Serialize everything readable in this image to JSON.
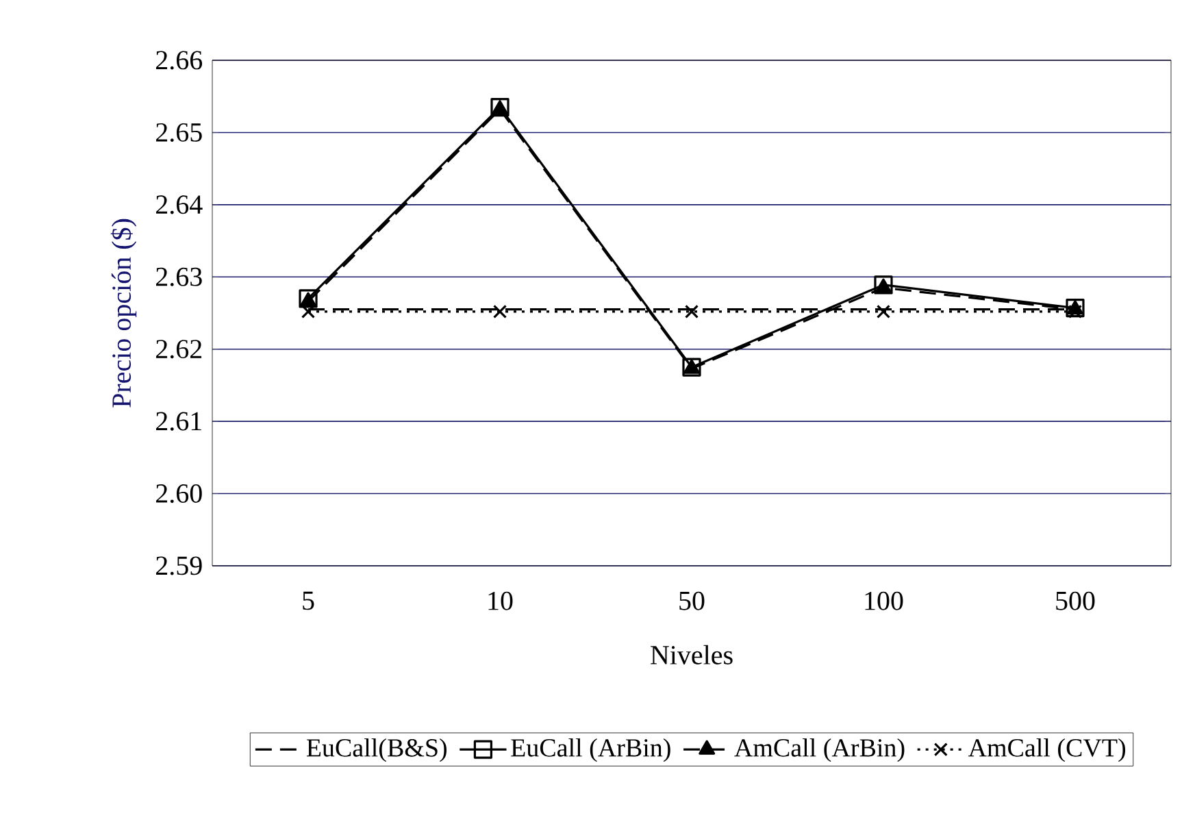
{
  "chart_data": {
    "type": "line",
    "xlabel": "Niveles",
    "ylabel": "Precio opción ($)",
    "categories": [
      "5",
      "10",
      "50",
      "100",
      "500"
    ],
    "series": [
      {
        "name": "EuCall(B&S)",
        "color": "#000000",
        "line_style": "dashed",
        "marker": "none",
        "values": [
          2.6255,
          2.6255,
          2.6255,
          2.6255,
          2.6255
        ]
      },
      {
        "name": "EuCall (ArBin)",
        "color": "#000000",
        "line_style": "solid",
        "marker": "square",
        "values": [
          2.627,
          2.6535,
          2.6175,
          2.6289,
          2.6257
        ]
      },
      {
        "name": "AmCall (ArBin)",
        "color": "#000000",
        "line_style": "dashed",
        "marker": "triangle",
        "values": [
          2.6266,
          2.6532,
          2.6173,
          2.6285,
          2.6255
        ]
      },
      {
        "name": "AmCall (CVT)",
        "color": "#000000",
        "line_style": "dotted",
        "marker": "cross",
        "values": [
          2.6252,
          2.6252,
          2.6252,
          2.6252,
          2.6252
        ]
      }
    ],
    "ylim": [
      2.59,
      2.66
    ],
    "yticks": [
      2.59,
      {
        "value": 2.6,
        "label": "2.60"
      },
      2.61,
      2.62,
      2.63,
      2.64,
      2.65,
      2.66
    ],
    "grid": "y",
    "legend": "bottom"
  }
}
